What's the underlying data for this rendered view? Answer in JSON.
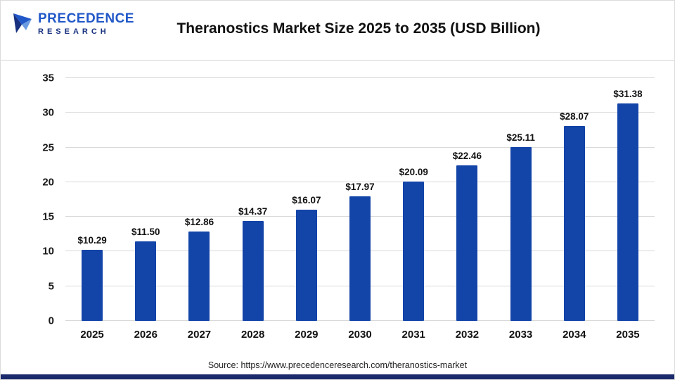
{
  "logo": {
    "name_top": "PRECEDENCE",
    "name_bottom": "RESEARCH"
  },
  "header": {
    "title": "Theranostics Market Size 2025 to 2035 (USD Billion)"
  },
  "footer": {
    "source": "Source: https://www.precedenceresearch.com/theranostics-market"
  },
  "colors": {
    "bar": "#1344a8",
    "footer_strip": "#1b2a6b",
    "logo_blue": "#2158c8",
    "logo_navy": "#17307f"
  },
  "chart_data": {
    "type": "bar",
    "title": "Theranostics Market Size 2025 to 2035 (USD Billion)",
    "categories": [
      "2025",
      "2026",
      "2027",
      "2028",
      "2029",
      "2030",
      "2031",
      "2032",
      "2033",
      "2034",
      "2035"
    ],
    "values": [
      10.29,
      11.5,
      12.86,
      14.37,
      16.07,
      17.97,
      20.09,
      22.46,
      25.11,
      28.07,
      31.38
    ],
    "value_prefix": "$",
    "xlabel": "",
    "ylabel": "",
    "ylim": [
      0,
      35
    ],
    "yticks": [
      0,
      5,
      10,
      15,
      20,
      25,
      30,
      35
    ],
    "grid": true,
    "legend_position": "none",
    "bar_color": "#1344a8"
  }
}
